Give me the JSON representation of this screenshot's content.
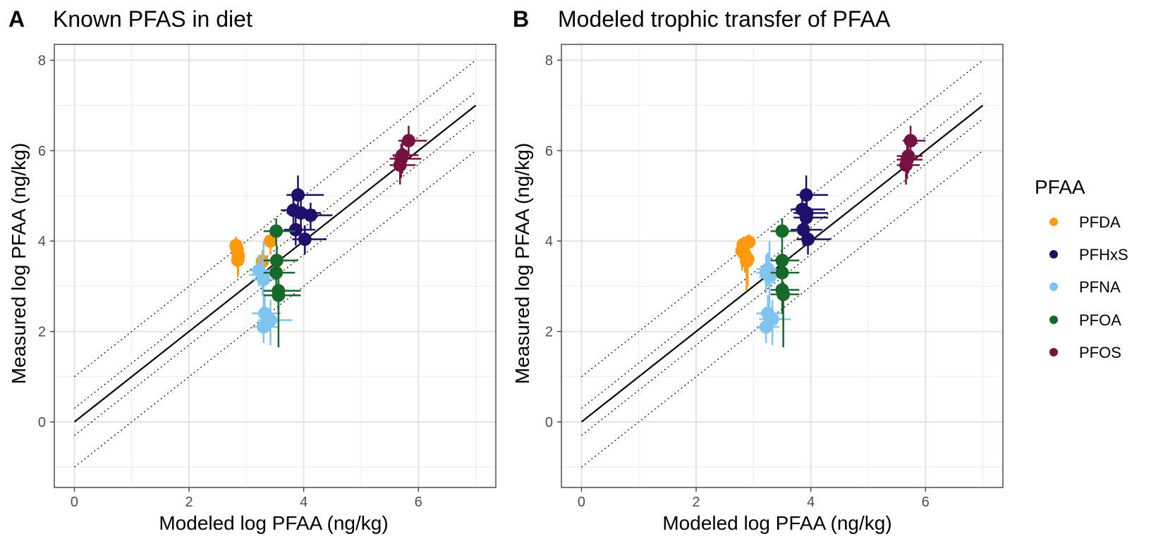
{
  "legend": {
    "title": "PFAA",
    "items": [
      {
        "label": "PFDA",
        "color": "#FF9A0F"
      },
      {
        "label": "PFHxS",
        "color": "#21106B"
      },
      {
        "label": "PFNA",
        "color": "#80C3EE"
      },
      {
        "label": "PFOA",
        "color": "#17692B"
      },
      {
        "label": "PFOS",
        "color": "#76123F"
      }
    ]
  },
  "chart_data": [
    {
      "type": "scatter",
      "tag": "A",
      "title": "Known PFAS in diet",
      "xlabel": "Modeled log PFAA (ng/kg)",
      "ylabel": "Measured log PFAA (ng/kg)",
      "xlim": [
        -0.35,
        7.35
      ],
      "ylim": [
        -1.45,
        8.35
      ],
      "x_ticks": [
        0,
        2,
        4,
        6
      ],
      "y_ticks": [
        0,
        2,
        4,
        6,
        8
      ],
      "grid": true,
      "reference_lines": [
        {
          "intercept": 0,
          "style": "solid"
        },
        {
          "intercept": 0.3,
          "style": "dotted"
        },
        {
          "intercept": -0.3,
          "style": "dotted"
        },
        {
          "intercept": 1,
          "style": "dotted"
        },
        {
          "intercept": -1,
          "style": "dotted"
        }
      ],
      "line_range": [
        0,
        7
      ],
      "series": [
        {
          "name": "PFDA",
          "color": "#FF9A0F",
          "points": [
            {
              "x": 2.82,
              "y": 3.9,
              "ylo": 3.5,
              "yhi": 4.1
            },
            {
              "x": 2.84,
              "y": 3.82,
              "ylo": 3.4,
              "yhi": 4.05
            },
            {
              "x": 2.86,
              "y": 3.68,
              "ylo": 3.25,
              "yhi": 3.95
            },
            {
              "x": 2.85,
              "y": 3.58,
              "ylo": 3.2,
              "yhi": 3.9
            },
            {
              "x": 3.42,
              "y": 4.0,
              "ylo": 3.7,
              "yhi": 4.2
            },
            {
              "x": 3.28,
              "y": 3.55,
              "ylo": 3.1,
              "yhi": 3.8
            }
          ]
        },
        {
          "name": "PFHxS",
          "color": "#21106B",
          "points": [
            {
              "x": 3.9,
              "y": 5.02,
              "ylo": 4.6,
              "yhi": 5.45,
              "xlo": 3.7,
              "xhi": 4.35
            },
            {
              "x": 3.82,
              "y": 4.68,
              "ylo": 4.3,
              "yhi": 5.0,
              "xlo": 3.6,
              "xhi": 4.2
            },
            {
              "x": 3.95,
              "y": 4.62,
              "ylo": 4.25,
              "yhi": 4.95,
              "xlo": 3.7,
              "xhi": 4.3
            },
            {
              "x": 4.12,
              "y": 4.57,
              "ylo": 4.25,
              "yhi": 4.85,
              "xlo": 3.85,
              "xhi": 4.5
            },
            {
              "x": 3.86,
              "y": 4.25,
              "ylo": 3.9,
              "yhi": 4.55,
              "xlo": 3.65,
              "xhi": 4.2
            },
            {
              "x": 4.02,
              "y": 4.04,
              "ylo": 3.7,
              "yhi": 4.35,
              "xlo": 3.8,
              "xhi": 4.4
            }
          ]
        },
        {
          "name": "PFNA",
          "color": "#80C3EE",
          "points": [
            {
              "x": 3.22,
              "y": 3.35,
              "ylo": 3.0,
              "yhi": 3.7,
              "xlo": 3.05,
              "xhi": 3.45
            },
            {
              "x": 3.28,
              "y": 3.25,
              "ylo": 2.8,
              "yhi": 3.65,
              "xlo": 3.05,
              "xhi": 3.5
            },
            {
              "x": 3.3,
              "y": 3.15,
              "ylo": 1.9,
              "yhi": 4.0,
              "xlo": 3.1,
              "xhi": 3.55
            },
            {
              "x": 3.32,
              "y": 2.4,
              "ylo": 2.0,
              "yhi": 2.8,
              "xlo": 3.1,
              "xhi": 3.6
            },
            {
              "x": 3.42,
              "y": 2.25,
              "ylo": 1.7,
              "yhi": 2.7,
              "xlo": 3.2,
              "xhi": 3.8
            },
            {
              "x": 3.3,
              "y": 2.1,
              "ylo": 1.75,
              "yhi": 2.5,
              "xlo": 3.1,
              "xhi": 3.55
            }
          ]
        },
        {
          "name": "PFOA",
          "color": "#17692B",
          "points": [
            {
              "x": 3.52,
              "y": 4.22,
              "ylo": 3.9,
              "yhi": 4.5,
              "xlo": 3.3,
              "xhi": 3.85
            },
            {
              "x": 3.53,
              "y": 3.57,
              "ylo": 3.2,
              "yhi": 3.9,
              "xlo": 3.3,
              "xhi": 3.9
            },
            {
              "x": 3.52,
              "y": 3.3,
              "ylo": 2.9,
              "yhi": 3.6,
              "xlo": 3.3,
              "xhi": 3.85
            },
            {
              "x": 3.56,
              "y": 2.9,
              "ylo": 2.4,
              "yhi": 3.2,
              "xlo": 3.3,
              "xhi": 3.95
            },
            {
              "x": 3.56,
              "y": 2.8,
              "ylo": 1.65,
              "yhi": 3.1,
              "xlo": 3.3,
              "xhi": 3.95
            }
          ]
        },
        {
          "name": "PFOS",
          "color": "#76123F",
          "points": [
            {
              "x": 5.83,
              "y": 6.22,
              "ylo": 5.9,
              "yhi": 6.55,
              "xlo": 5.65,
              "xhi": 6.15
            },
            {
              "x": 5.72,
              "y": 5.9,
              "ylo": 5.5,
              "yhi": 6.2,
              "xlo": 5.55,
              "xhi": 6.0
            },
            {
              "x": 5.7,
              "y": 5.82,
              "ylo": 5.4,
              "yhi": 6.15,
              "xlo": 5.5,
              "xhi": 6.05
            },
            {
              "x": 5.68,
              "y": 5.68,
              "ylo": 5.25,
              "yhi": 6.0,
              "xlo": 5.5,
              "xhi": 5.95
            }
          ]
        }
      ]
    },
    {
      "type": "scatter",
      "tag": "B",
      "title": "Modeled trophic transfer of PFAA",
      "xlabel": "Modeled log PFAA (ng/kg)",
      "ylabel": "Measured log PFAA (ng/kg)",
      "xlim": [
        -0.35,
        7.35
      ],
      "ylim": [
        -1.45,
        8.35
      ],
      "x_ticks": [
        0,
        2,
        4,
        6
      ],
      "y_ticks": [
        0,
        2,
        4,
        6,
        8
      ],
      "grid": true,
      "reference_lines": [
        {
          "intercept": 0,
          "style": "solid"
        },
        {
          "intercept": 0.3,
          "style": "dotted"
        },
        {
          "intercept": -0.3,
          "style": "dotted"
        },
        {
          "intercept": 1,
          "style": "dotted"
        },
        {
          "intercept": -1,
          "style": "dotted"
        }
      ],
      "line_range": [
        0,
        7
      ],
      "series": [
        {
          "name": "PFDA",
          "color": "#FF9A0F",
          "points": [
            {
              "x": 2.92,
              "y": 3.98,
              "ylo": 3.6,
              "yhi": 4.15
            },
            {
              "x": 2.82,
              "y": 3.92,
              "ylo": 3.5,
              "yhi": 4.1
            },
            {
              "x": 2.8,
              "y": 3.78,
              "ylo": 3.35,
              "yhi": 4.0
            },
            {
              "x": 2.85,
              "y": 3.7,
              "ylo": 3.3,
              "yhi": 3.95
            },
            {
              "x": 2.9,
              "y": 3.6,
              "ylo": 3.0,
              "yhi": 3.85
            },
            {
              "x": 2.88,
              "y": 3.55,
              "ylo": 2.9,
              "yhi": 3.85
            }
          ]
        },
        {
          "name": "PFHxS",
          "color": "#21106B",
          "points": [
            {
              "x": 3.92,
              "y": 5.02,
              "ylo": 4.6,
              "yhi": 5.45,
              "xlo": 3.75,
              "xhi": 4.3
            },
            {
              "x": 3.85,
              "y": 4.7,
              "ylo": 4.3,
              "yhi": 5.0,
              "xlo": 3.65,
              "xhi": 4.25
            },
            {
              "x": 3.93,
              "y": 4.62,
              "ylo": 4.25,
              "yhi": 4.95,
              "xlo": 3.7,
              "xhi": 4.3
            },
            {
              "x": 3.92,
              "y": 4.52,
              "ylo": 4.2,
              "yhi": 4.8,
              "xlo": 3.7,
              "xhi": 4.3
            },
            {
              "x": 3.87,
              "y": 4.25,
              "ylo": 3.9,
              "yhi": 4.55,
              "xlo": 3.65,
              "xhi": 4.2
            },
            {
              "x": 3.95,
              "y": 4.04,
              "ylo": 3.7,
              "yhi": 4.35,
              "xlo": 3.75,
              "xhi": 4.35
            }
          ]
        },
        {
          "name": "PFNA",
          "color": "#80C3EE",
          "points": [
            {
              "x": 3.25,
              "y": 3.38,
              "ylo": 3.0,
              "yhi": 3.75,
              "xlo": 3.05,
              "xhi": 3.5
            },
            {
              "x": 3.22,
              "y": 3.3,
              "ylo": 2.85,
              "yhi": 3.7,
              "xlo": 3.05,
              "xhi": 3.45
            },
            {
              "x": 3.28,
              "y": 3.2,
              "ylo": 2.5,
              "yhi": 4.0,
              "xlo": 3.1,
              "xhi": 3.5
            },
            {
              "x": 3.25,
              "y": 2.4,
              "ylo": 2.0,
              "yhi": 2.8,
              "xlo": 3.05,
              "xhi": 3.5
            },
            {
              "x": 3.33,
              "y": 2.27,
              "ylo": 1.7,
              "yhi": 2.7,
              "xlo": 3.1,
              "xhi": 3.65
            },
            {
              "x": 3.22,
              "y": 2.1,
              "ylo": 1.75,
              "yhi": 2.5,
              "xlo": 3.05,
              "xhi": 3.45
            }
          ]
        },
        {
          "name": "PFOA",
          "color": "#17692B",
          "points": [
            {
              "x": 3.5,
              "y": 4.22,
              "ylo": 3.9,
              "yhi": 4.5,
              "xlo": 3.3,
              "xhi": 3.75
            },
            {
              "x": 3.5,
              "y": 3.57,
              "ylo": 3.2,
              "yhi": 3.9,
              "xlo": 3.3,
              "xhi": 3.8
            },
            {
              "x": 3.5,
              "y": 3.3,
              "ylo": 2.9,
              "yhi": 3.6,
              "xlo": 3.3,
              "xhi": 3.8
            },
            {
              "x": 3.5,
              "y": 2.92,
              "ylo": 2.4,
              "yhi": 3.2,
              "xlo": 3.3,
              "xhi": 3.8
            },
            {
              "x": 3.52,
              "y": 2.82,
              "ylo": 1.65,
              "yhi": 3.1,
              "xlo": 3.3,
              "xhi": 3.8
            }
          ]
        },
        {
          "name": "PFOS",
          "color": "#76123F",
          "points": [
            {
              "x": 5.74,
              "y": 6.22,
              "ylo": 5.9,
              "yhi": 6.55,
              "xlo": 5.6,
              "xhi": 6.0
            },
            {
              "x": 5.7,
              "y": 5.88,
              "ylo": 5.5,
              "yhi": 6.2,
              "xlo": 5.5,
              "xhi": 5.95
            },
            {
              "x": 5.68,
              "y": 5.8,
              "ylo": 5.4,
              "yhi": 6.15,
              "xlo": 5.5,
              "xhi": 5.95
            },
            {
              "x": 5.66,
              "y": 5.68,
              "ylo": 5.25,
              "yhi": 6.0,
              "xlo": 5.5,
              "xhi": 5.9
            }
          ]
        }
      ]
    }
  ]
}
